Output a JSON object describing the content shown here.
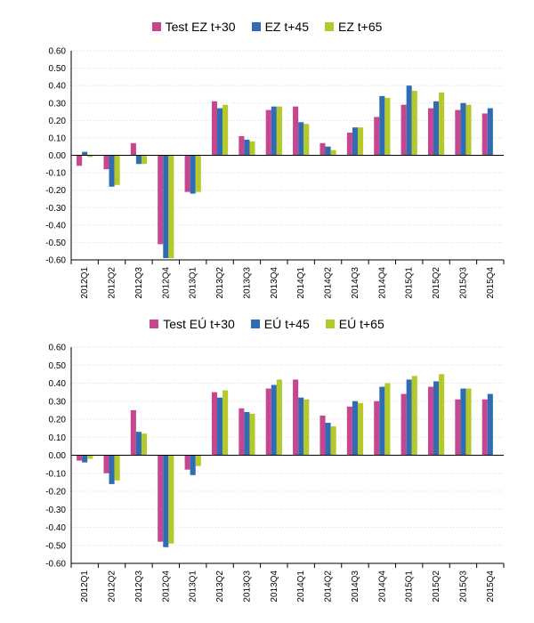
{
  "chart_data": [
    {
      "type": "bar",
      "title": "",
      "xlabel": "",
      "ylabel": "",
      "categories": [
        "2012Q1",
        "2012Q2",
        "2012Q3",
        "2012Q4",
        "2013Q1",
        "2013Q2",
        "2013Q3",
        "2013Q4",
        "2014Q1",
        "2014Q2",
        "2014Q3",
        "2014Q4",
        "2015Q1",
        "2015Q2",
        "2015Q3",
        "2015Q4"
      ],
      "y_ticks": [
        "0.60",
        "0.50",
        "0.40",
        "0.30",
        "0.20",
        "0.10",
        "0.00",
        "-0.10",
        "-0.20",
        "-0.30",
        "-0.40",
        "-0.50",
        "-0.60"
      ],
      "ylim": [
        -0.6,
        0.6
      ],
      "grid": true,
      "legend_position": "top-center",
      "series": [
        {
          "name": "Test EZ t+30",
          "color": "#c6468f",
          "values": [
            -0.06,
            -0.08,
            0.07,
            -0.51,
            -0.21,
            0.31,
            0.11,
            0.26,
            0.28,
            0.07,
            0.13,
            0.22,
            0.29,
            0.27,
            0.26,
            0.24
          ]
        },
        {
          "name": "EZ t+45",
          "color": "#2f6cb3",
          "values": [
            0.02,
            -0.18,
            -0.05,
            -0.59,
            -0.22,
            0.27,
            0.09,
            0.28,
            0.19,
            0.05,
            0.16,
            0.34,
            0.4,
            0.31,
            0.3,
            0.27
          ]
        },
        {
          "name": "EZ t+65",
          "color": "#b5c92a",
          "values": [
            -0.01,
            -0.17,
            -0.05,
            -0.59,
            -0.21,
            0.29,
            0.08,
            0.28,
            0.18,
            0.03,
            0.16,
            0.33,
            0.37,
            0.36,
            0.29,
            null
          ]
        }
      ]
    },
    {
      "type": "bar",
      "title": "",
      "xlabel": "",
      "ylabel": "",
      "categories": [
        "2012Q1",
        "2012Q2",
        "2012Q3",
        "2012Q4",
        "2013Q1",
        "2013Q2",
        "2013Q3",
        "2013Q4",
        "2014Q1",
        "2014Q2",
        "2014Q3",
        "2014Q4",
        "2015Q1",
        "2015Q2",
        "2015Q3",
        "2015Q4"
      ],
      "y_ticks": [
        "0.60",
        "0.50",
        "0.40",
        "0.30",
        "0.20",
        "0.10",
        "0.00",
        "-0.10",
        "-0.20",
        "-0.30",
        "-0.40",
        "-0.50",
        "-0.60"
      ],
      "ylim": [
        -0.6,
        0.6
      ],
      "grid": true,
      "legend_position": "top-center",
      "series": [
        {
          "name": "Test EÚ t+30",
          "color": "#c6468f",
          "values": [
            -0.03,
            -0.1,
            0.25,
            -0.48,
            -0.08,
            0.35,
            0.26,
            0.37,
            0.42,
            0.22,
            0.27,
            0.3,
            0.34,
            0.38,
            0.31,
            0.31
          ]
        },
        {
          "name": "EÚ t+45",
          "color": "#2f6cb3",
          "values": [
            -0.04,
            -0.16,
            0.13,
            -0.51,
            -0.11,
            0.32,
            0.24,
            0.39,
            0.32,
            0.18,
            0.3,
            0.38,
            0.42,
            0.41,
            0.37,
            0.34
          ]
        },
        {
          "name": "EÚ t+65",
          "color": "#b5c92a",
          "values": [
            -0.02,
            -0.14,
            0.12,
            -0.49,
            -0.06,
            0.36,
            0.23,
            0.42,
            0.31,
            0.16,
            0.29,
            0.4,
            0.44,
            0.45,
            0.37,
            null
          ]
        }
      ]
    }
  ]
}
